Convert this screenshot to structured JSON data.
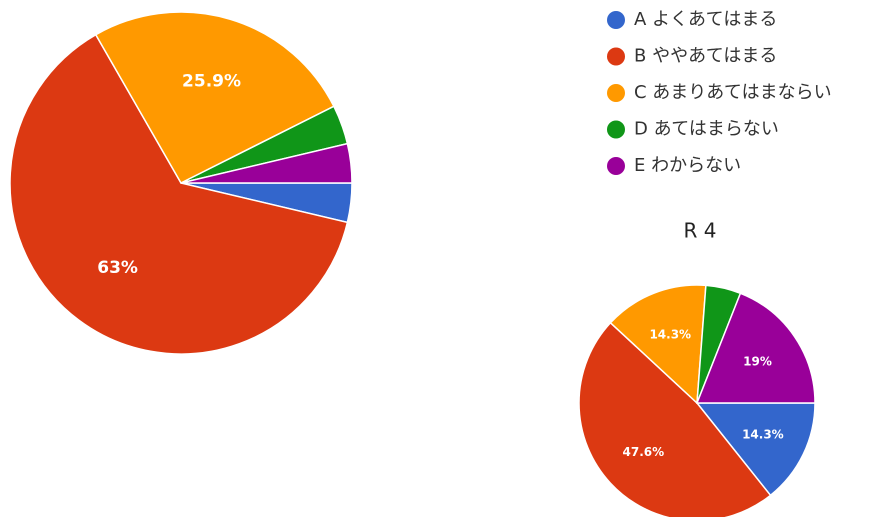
{
  "chart_data": [
    {
      "type": "pie",
      "categories": [
        "A よくあてはまる",
        "B ややあてはまる",
        "C あまりあてはまならい",
        "D あてはまらない",
        "E わからない"
      ],
      "colors": [
        "#3366cc",
        "#dc3912",
        "#ff9900",
        "#109618",
        "#990099"
      ],
      "values": [
        3.7,
        63,
        25.9,
        3.7,
        3.7
      ],
      "value_labels": [
        null,
        "63%",
        "25.9%",
        null,
        null
      ]
    },
    {
      "type": "pie",
      "title": "R 4",
      "colors": [
        "#3366cc",
        "#dc3912",
        "#ff9900",
        "#109618",
        "#990099"
      ],
      "values": [
        14.3,
        47.6,
        14.3,
        4.8,
        19
      ],
      "value_labels": [
        "14.3%",
        "47.6%",
        "14.3%",
        null,
        "19%"
      ]
    }
  ]
}
